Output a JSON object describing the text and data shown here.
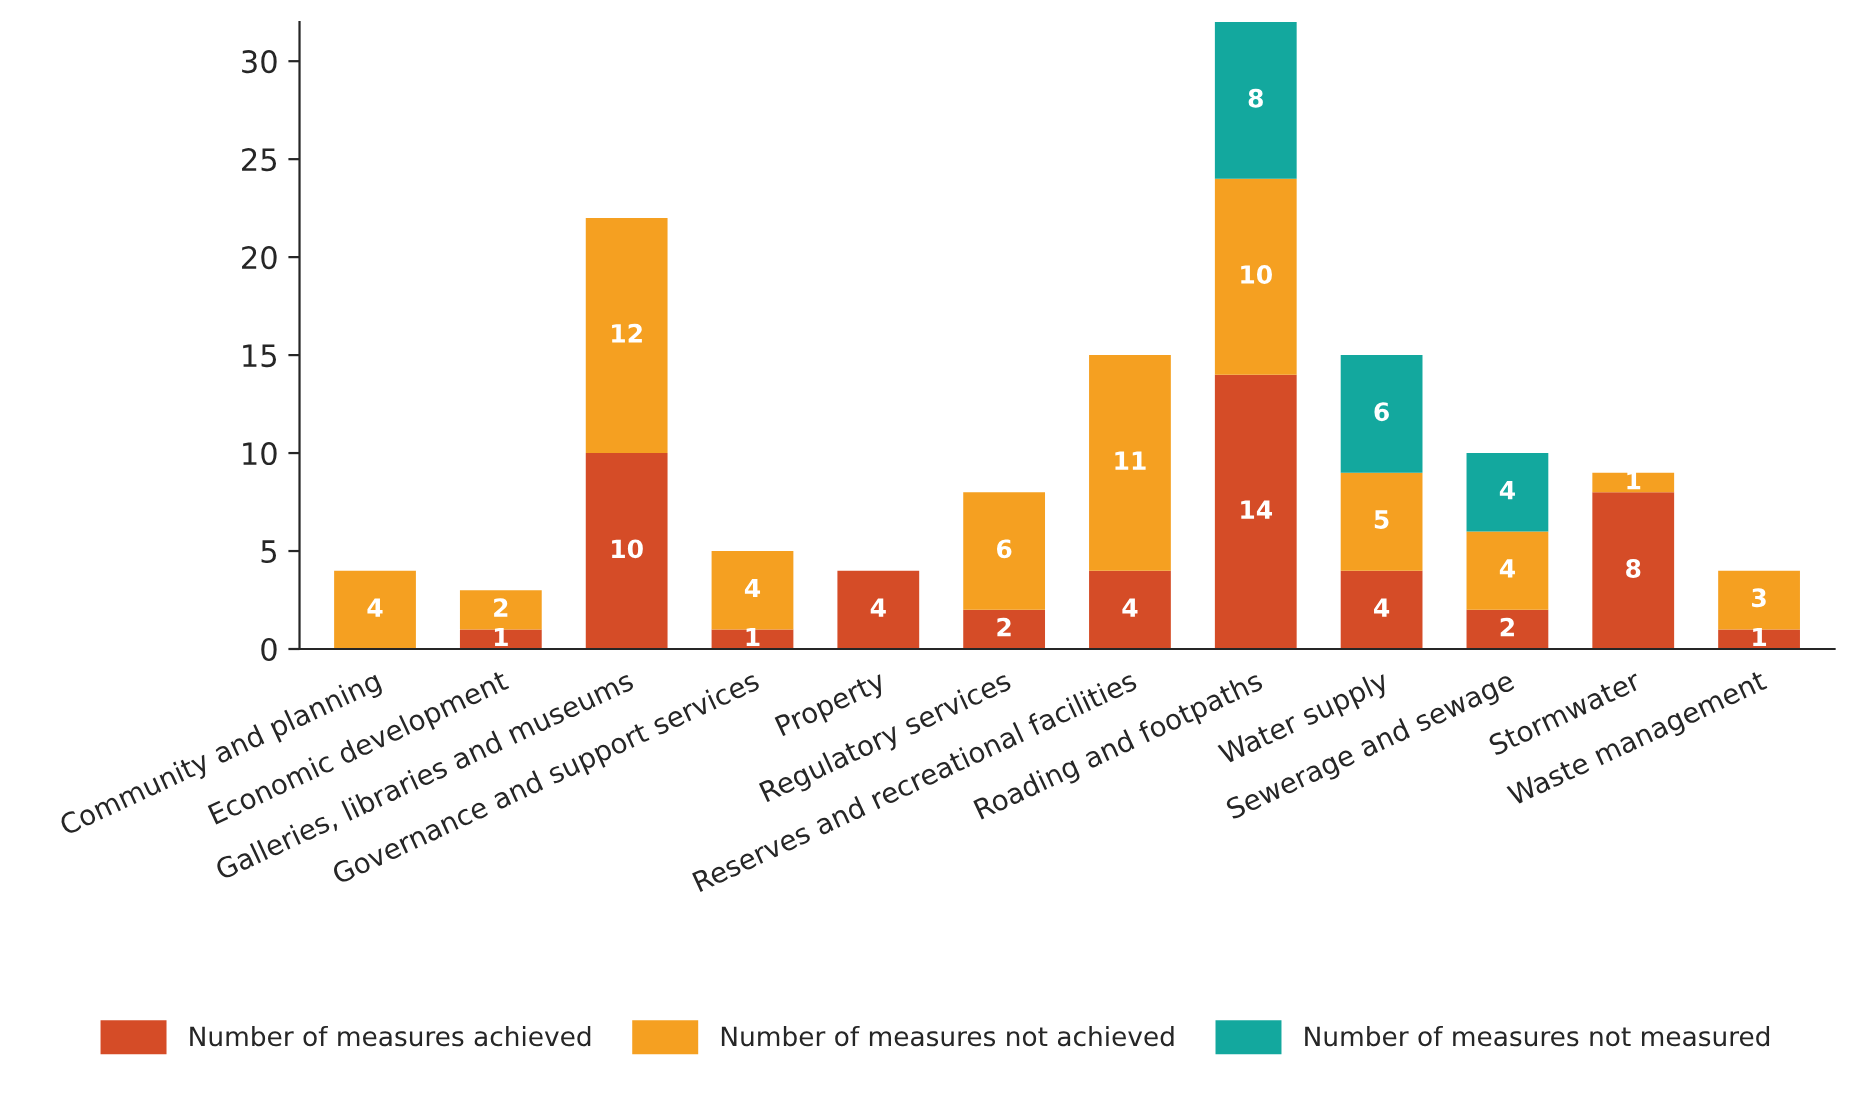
{
  "chart_data": {
    "type": "bar",
    "stacked": true,
    "categories": [
      "Community and planning",
      "Economic development",
      "Galleries, libraries and museums",
      "Governance and support services",
      "Property",
      "Regulatory services",
      "Reserves and recreational facilities",
      "Roading and footpaths",
      "Water supply",
      "Sewerage and sewage",
      "Stormwater",
      "Waste management"
    ],
    "series": [
      {
        "name": "Number of measures achieved",
        "color": "#d54c27",
        "values": [
          null,
          1,
          10,
          1,
          4,
          2,
          4,
          14,
          4,
          2,
          8,
          1
        ]
      },
      {
        "name": "Number of measures not achieved",
        "color": "#f5a021",
        "values": [
          4,
          2,
          12,
          4,
          null,
          6,
          11,
          10,
          5,
          4,
          1,
          3
        ]
      },
      {
        "name": "Number of measures not measured",
        "color": "#13a89e",
        "values": [
          null,
          null,
          null,
          null,
          null,
          null,
          null,
          8,
          6,
          4,
          null,
          null
        ]
      }
    ],
    "ylim": [
      0,
      32
    ],
    "yticks": [
      0,
      5,
      10,
      15,
      20,
      25,
      30
    ],
    "data_labels": true,
    "legend": "bottom",
    "grid": false
  }
}
